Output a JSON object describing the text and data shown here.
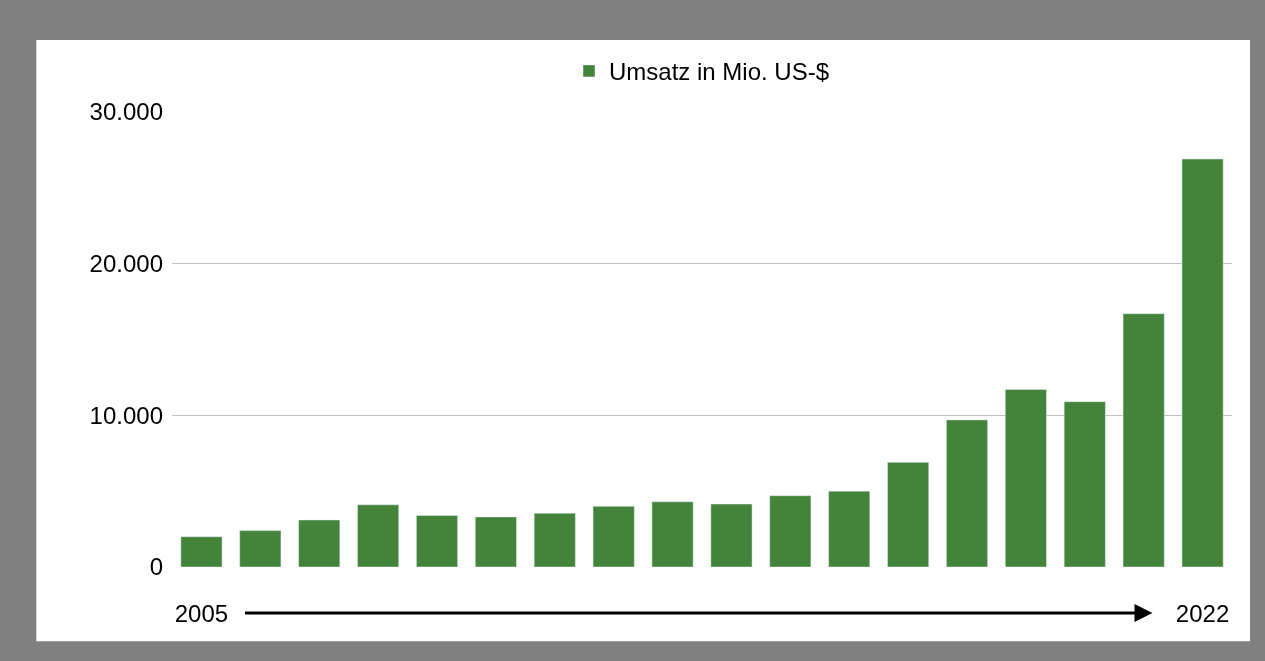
{
  "chart_data": {
    "type": "bar",
    "categories": [
      "2005",
      null,
      null,
      null,
      null,
      null,
      null,
      null,
      null,
      null,
      null,
      null,
      null,
      null,
      null,
      null,
      null,
      "2022"
    ],
    "series": [
      {
        "name": "Umsatz in Mio. US-$",
        "color": "#43833a",
        "values": [
          2000,
          2400,
          3100,
          4100,
          3400,
          3300,
          3550,
          4000,
          4300,
          4150,
          4700,
          5000,
          6900,
          9700,
          11700,
          10900,
          16700,
          26900
        ]
      }
    ],
    "ylim": [
      0,
      30000
    ],
    "yticks": [
      {
        "value": 0,
        "label": "0"
      },
      {
        "value": 10000,
        "label": "10.000"
      },
      {
        "value": 20000,
        "label": "20.000"
      },
      {
        "value": 30000,
        "label": "30.000"
      }
    ],
    "grid": "y",
    "legend": "top"
  }
}
